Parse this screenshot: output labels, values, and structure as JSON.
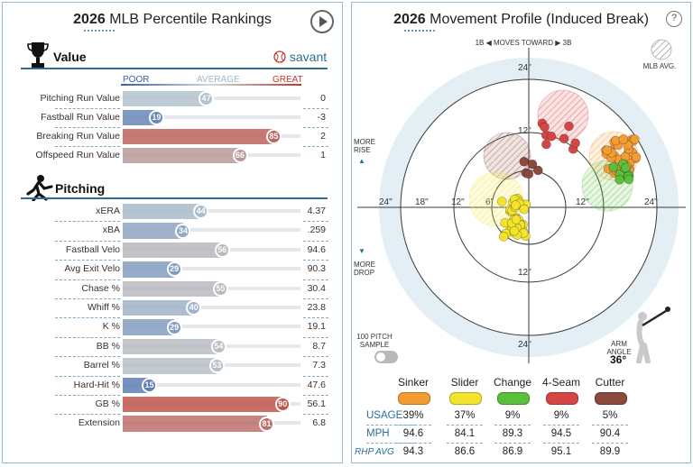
{
  "colors": {
    "border": "#9ab8cc",
    "accent": "#2a6e94",
    "poor": "#3a5fa8",
    "average": "#9fb8c4",
    "great": "#c0392b",
    "sinker": "#f39c33",
    "slider": "#f2e32c",
    "change": "#5bbf3b",
    "fourseam": "#d64545",
    "cutter": "#8b4a3c"
  },
  "left": {
    "title_year": "2026",
    "title_rest": "MLB Percentile Rankings",
    "play_icon": "play-icon",
    "savant_logo": "savant",
    "scale": {
      "poor": "POOR",
      "average": "AVERAGE",
      "great": "GREAT"
    },
    "value_section": {
      "title": "Value",
      "icon": "trophy-icon",
      "rows": [
        {
          "label": "Pitching Run Value",
          "pct": 47,
          "value": "0"
        },
        {
          "label": "Fastball Run Value",
          "pct": 19,
          "value": "-3"
        },
        {
          "label": "Breaking Run Value",
          "pct": 85,
          "value": "2"
        },
        {
          "label": "Offspeed Run Value",
          "pct": 66,
          "value": "1"
        }
      ]
    },
    "pitching_section": {
      "title": "Pitching",
      "icon": "pitcher-icon",
      "rows": [
        {
          "label": "xERA",
          "pct": 44,
          "value": "4.37"
        },
        {
          "label": "xBA",
          "pct": 34,
          "value": ".259"
        },
        {
          "label": "Fastball Velo",
          "pct": 56,
          "value": "94.6"
        },
        {
          "label": "Avg Exit Velo",
          "pct": 29,
          "value": "90.3"
        },
        {
          "label": "Chase %",
          "pct": 55,
          "value": "30.4"
        },
        {
          "label": "Whiff %",
          "pct": 40,
          "value": "23.8"
        },
        {
          "label": "K %",
          "pct": 29,
          "value": "19.1"
        },
        {
          "label": "BB %",
          "pct": 54,
          "value": "8.7"
        },
        {
          "label": "Barrel %",
          "pct": 53,
          "value": "7.3"
        },
        {
          "label": "Hard-Hit %",
          "pct": 15,
          "value": "47.6"
        },
        {
          "label": "GB %",
          "pct": 90,
          "value": "56.1"
        },
        {
          "label": "Extension",
          "pct": 81,
          "value": "6.8"
        }
      ]
    }
  },
  "right": {
    "title_year": "2026",
    "title_rest": "Movement Profile (Induced Break)",
    "help_icon": "?",
    "moves_toward": "1B ◀  MOVES TOWARD  ▶ 3B",
    "mlb_avg": "MLB AVG.",
    "more_rise": "MORE RISE",
    "more_drop": "MORE DROP",
    "sample_label": "100 PITCH SAMPLE",
    "arm_angle_label": "ARM ANGLE",
    "arm_angle_value": "36°",
    "ring_labels": [
      "24\"",
      "18\"",
      "12\"",
      "6\""
    ],
    "table": {
      "pitches": [
        "Sinker",
        "Slider",
        "Change",
        "4-Seam",
        "Cutter"
      ],
      "rows": [
        {
          "label": "USAGE",
          "values": [
            "39%",
            "37%",
            "9%",
            "9%",
            "5%"
          ]
        },
        {
          "label": "MPH",
          "values": [
            "94.6",
            "84.1",
            "89.3",
            "94.5",
            "90.4"
          ]
        },
        {
          "label": "RHP AVG",
          "values": [
            "94.3",
            "86.6",
            "86.9",
            "95.1",
            "89.9"
          ]
        }
      ]
    }
  }
}
